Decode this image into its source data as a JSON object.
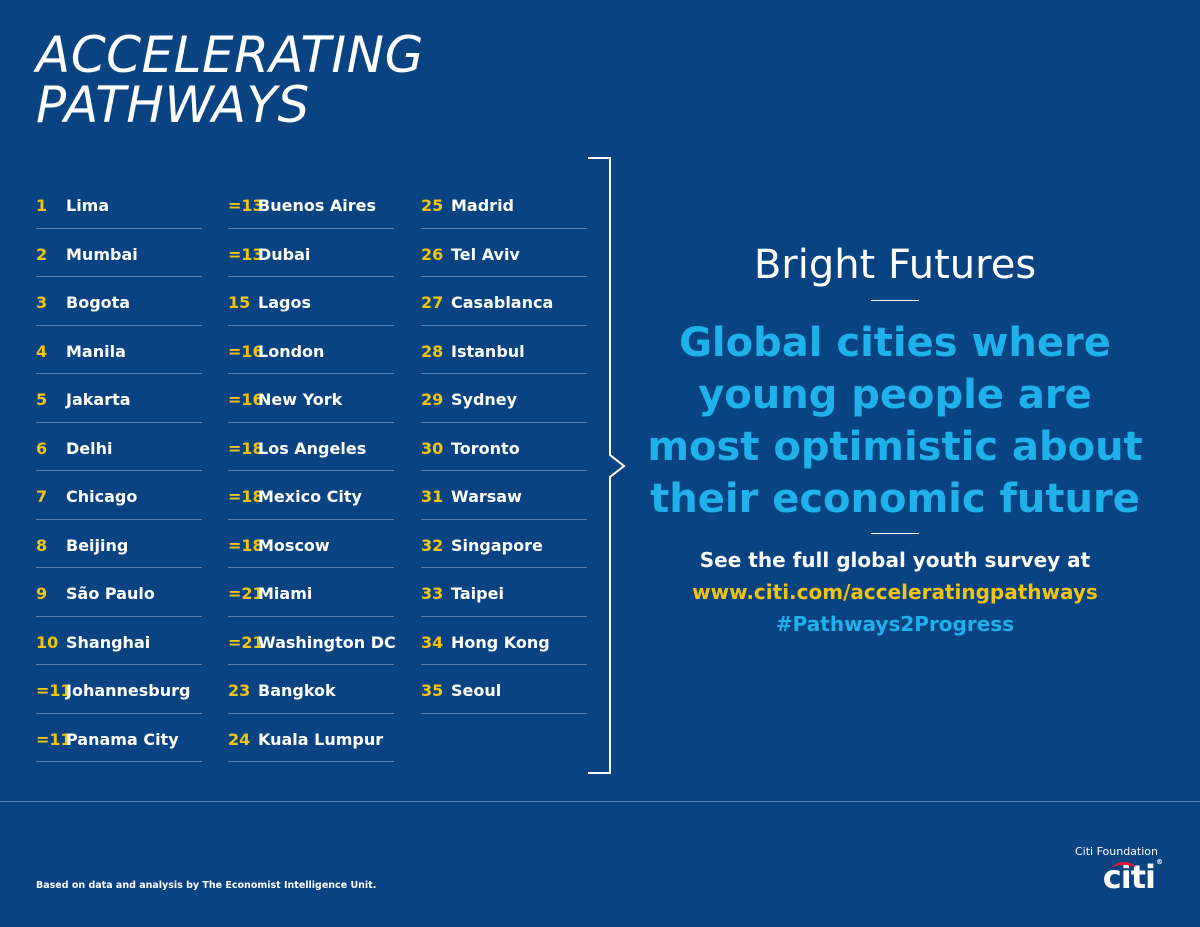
{
  "header": {
    "title_line1": "ACCELERATING",
    "title_line2": "PATHWAYS"
  },
  "rankings": {
    "columns": [
      [
        {
          "rank": "1",
          "city": "Lima"
        },
        {
          "rank": "2",
          "city": "Mumbai"
        },
        {
          "rank": "3",
          "city": "Bogota"
        },
        {
          "rank": "4",
          "city": "Manila"
        },
        {
          "rank": "5",
          "city": "Jakarta"
        },
        {
          "rank": "6",
          "city": "Delhi"
        },
        {
          "rank": "7",
          "city": "Chicago"
        },
        {
          "rank": "8",
          "city": "Beijing"
        },
        {
          "rank": "9",
          "city": "São Paulo"
        },
        {
          "rank": "10",
          "city": "Shanghai"
        },
        {
          "rank": "=11",
          "city": "Johannesburg"
        },
        {
          "rank": "=11",
          "city": "Panama City"
        }
      ],
      [
        {
          "rank": "=13",
          "city": "Buenos Aires"
        },
        {
          "rank": "=13",
          "city": "Dubai"
        },
        {
          "rank": "15",
          "city": "Lagos"
        },
        {
          "rank": "=16",
          "city": "London"
        },
        {
          "rank": "=16",
          "city": "New York"
        },
        {
          "rank": "=18",
          "city": "Los Angeles"
        },
        {
          "rank": "=18",
          "city": "Mexico City"
        },
        {
          "rank": "=18",
          "city": "Moscow"
        },
        {
          "rank": "=21",
          "city": "Miami"
        },
        {
          "rank": "=21",
          "city": "Washington DC"
        },
        {
          "rank": "23",
          "city": "Bangkok"
        },
        {
          "rank": "24",
          "city": "Kuala Lumpur"
        }
      ],
      [
        {
          "rank": "25",
          "city": "Madrid"
        },
        {
          "rank": "26",
          "city": "Tel Aviv"
        },
        {
          "rank": "27",
          "city": "Casablanca"
        },
        {
          "rank": "28",
          "city": "Istanbul"
        },
        {
          "rank": "29",
          "city": "Sydney"
        },
        {
          "rank": "30",
          "city": "Toronto"
        },
        {
          "rank": "31",
          "city": "Warsaw"
        },
        {
          "rank": "32",
          "city": "Singapore"
        },
        {
          "rank": "33",
          "city": "Taipei"
        },
        {
          "rank": "34",
          "city": "Hong Kong"
        },
        {
          "rank": "35",
          "city": "Seoul"
        }
      ]
    ]
  },
  "panel": {
    "heading": "Bright Futures",
    "tagline": "Global cities where young people are most optimistic about their economic future",
    "survey_text": "See the full global youth survey at",
    "url": "www.citi.com/acceleratingpathways",
    "hashtag": "#Pathways2Progress"
  },
  "footer": {
    "source": "Based on data and analysis by The Economist Intelligence Unit.",
    "foundation": "Citi Foundation",
    "logo_text": "citi",
    "logo_mark": "®"
  },
  "colors": {
    "background": "#0a4382",
    "rank_number": "#f1c40f",
    "accent_blue": "#1fb1ea",
    "logo_arc": "#e31837"
  },
  "icons": {
    "bracket": "right-chevron-bracket"
  }
}
